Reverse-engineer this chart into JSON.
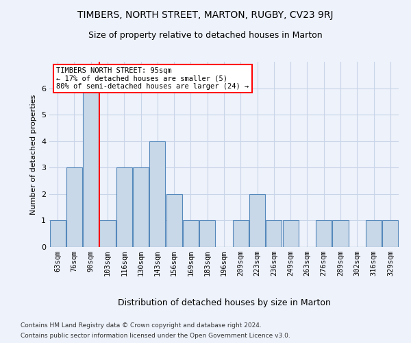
{
  "title": "TIMBERS, NORTH STREET, MARTON, RUGBY, CV23 9RJ",
  "subtitle": "Size of property relative to detached houses in Marton",
  "xlabel": "Distribution of detached houses by size in Marton",
  "ylabel": "Number of detached properties",
  "footer1": "Contains HM Land Registry data © Crown copyright and database right 2024.",
  "footer2": "Contains public sector information licensed under the Open Government Licence v3.0.",
  "categories": [
    "63sqm",
    "76sqm",
    "90sqm",
    "103sqm",
    "116sqm",
    "130sqm",
    "143sqm",
    "156sqm",
    "169sqm",
    "183sqm",
    "196sqm",
    "209sqm",
    "223sqm",
    "236sqm",
    "249sqm",
    "263sqm",
    "276sqm",
    "289sqm",
    "302sqm",
    "316sqm",
    "329sqm"
  ],
  "values": [
    1,
    3,
    6,
    1,
    3,
    3,
    4,
    2,
    1,
    1,
    0,
    1,
    2,
    1,
    1,
    0,
    1,
    1,
    0,
    1,
    1
  ],
  "bar_color": "#c8d8e8",
  "bar_edge_color": "#5588bb",
  "property_line_index": 2,
  "annotation_text": "TIMBERS NORTH STREET: 95sqm\n← 17% of detached houses are smaller (5)\n80% of semi-detached houses are larger (24) →",
  "annotation_box_color": "white",
  "annotation_box_edge": "red",
  "ylim": [
    0,
    7
  ],
  "yticks": [
    0,
    1,
    2,
    3,
    4,
    5,
    6
  ],
  "grid_color": "#c8d4e8",
  "background_color": "#eef2fb"
}
